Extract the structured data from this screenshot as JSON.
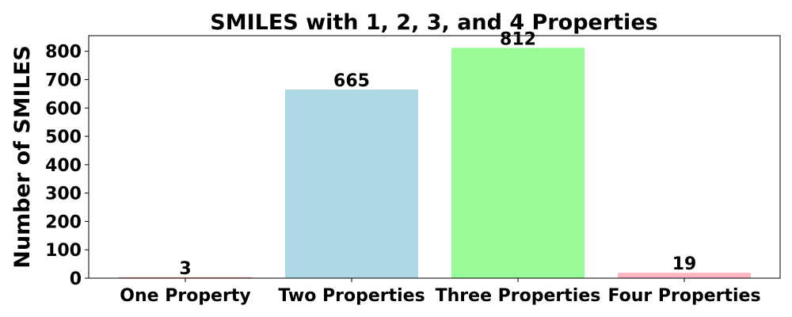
{
  "chart_data": {
    "type": "bar",
    "title": "SMILES with 1, 2, 3, and 4 Properties",
    "xlabel": "",
    "ylabel": "Number of SMILES",
    "categories": [
      "One Property",
      "Two Properties",
      "Three Properties",
      "Four Properties"
    ],
    "values": [
      3,
      665,
      812,
      19
    ],
    "data_labels": [
      "3",
      "665",
      "812",
      "19"
    ],
    "colors": [
      "#f08080",
      "#add8e6",
      "#98fb98",
      "#ffb6c1"
    ],
    "ylim": [
      0,
      855
    ],
    "yticks": [
      0,
      100,
      200,
      300,
      400,
      500,
      600,
      700,
      800
    ],
    "ytick_labels": [
      "0",
      "100",
      "200",
      "300",
      "400",
      "500",
      "600",
      "700",
      "800"
    ],
    "grid": false,
    "legend": "none"
  }
}
